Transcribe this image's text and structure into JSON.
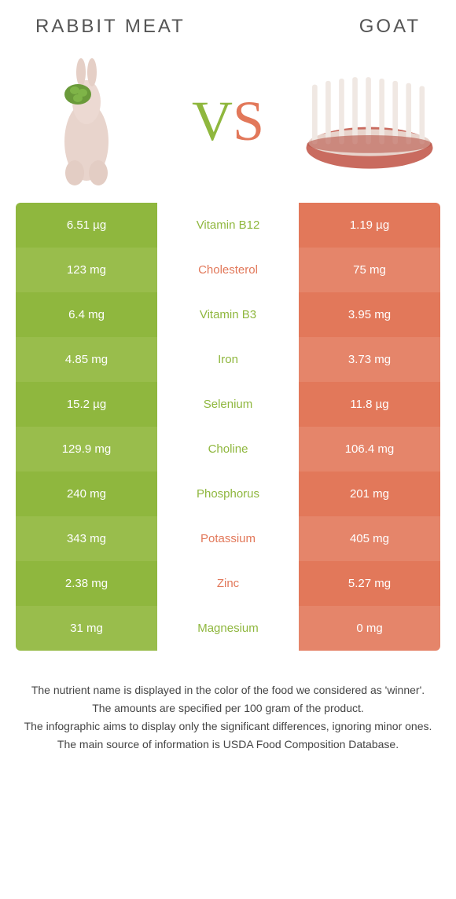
{
  "colors": {
    "green": "#8fb73e",
    "green_alt": "#99bd4c",
    "orange": "#e2785a",
    "orange_alt": "#e5856a",
    "text_dark": "#555555"
  },
  "header": {
    "left_title": "RABBIT MEAT",
    "right_title": "GOAT"
  },
  "vs": {
    "v": "V",
    "s": "S"
  },
  "rows": [
    {
      "left": "6.51 µg",
      "name": "Vitamin B12",
      "right": "1.19 µg",
      "winner": "left"
    },
    {
      "left": "123 mg",
      "name": "Cholesterol",
      "right": "75 mg",
      "winner": "right"
    },
    {
      "left": "6.4 mg",
      "name": "Vitamin B3",
      "right": "3.95 mg",
      "winner": "left"
    },
    {
      "left": "4.85 mg",
      "name": "Iron",
      "right": "3.73 mg",
      "winner": "left"
    },
    {
      "left": "15.2 µg",
      "name": "Selenium",
      "right": "11.8 µg",
      "winner": "left"
    },
    {
      "left": "129.9 mg",
      "name": "Choline",
      "right": "106.4 mg",
      "winner": "left"
    },
    {
      "left": "240 mg",
      "name": "Phosphorus",
      "right": "201 mg",
      "winner": "left"
    },
    {
      "left": "343 mg",
      "name": "Potassium",
      "right": "405 mg",
      "winner": "right"
    },
    {
      "left": "2.38 mg",
      "name": "Zinc",
      "right": "5.27 mg",
      "winner": "right"
    },
    {
      "left": "31 mg",
      "name": "Magnesium",
      "right": "0 mg",
      "winner": "left"
    }
  ],
  "footer": {
    "line1": "The nutrient name is displayed in the color of the food we considered as 'winner'.",
    "line2": "The amounts are specified per 100 gram of the product.",
    "line3": "The infographic aims to display only the significant differences, ignoring minor ones.",
    "line4": "The main source of information is USDA Food Composition Database."
  }
}
